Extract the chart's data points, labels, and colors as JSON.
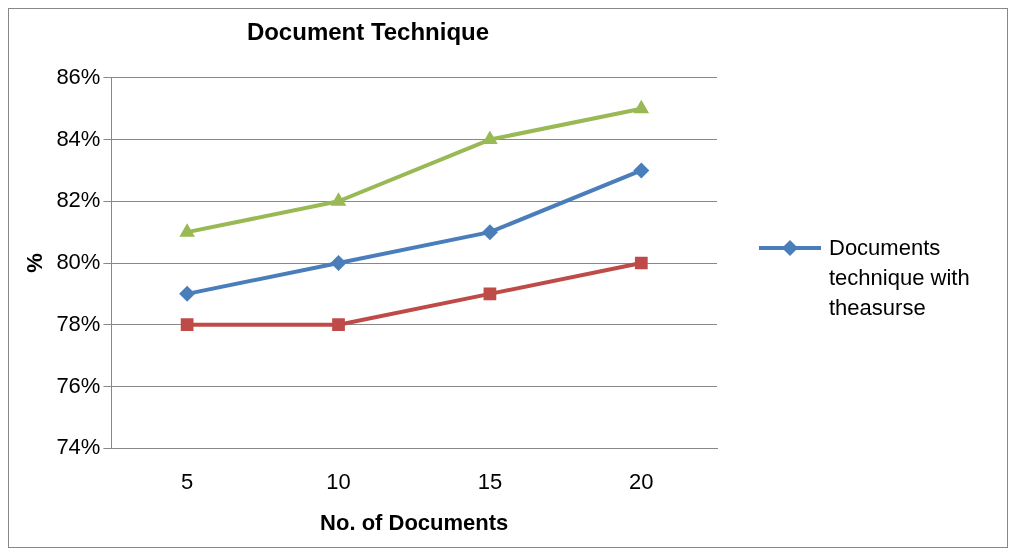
{
  "chart_data": {
    "type": "line",
    "title": "Document Technique",
    "xlabel": "No. of Documents",
    "ylabel": "%",
    "categories": [
      "5",
      "10",
      "15",
      "20"
    ],
    "series": [
      {
        "name": "Documents technique with theasurse",
        "color": "#4a7ebb",
        "values": [
          79,
          80,
          81,
          83
        ],
        "marker": "diamond"
      },
      {
        "color": "#be4b48",
        "values": [
          78,
          78,
          79,
          80
        ],
        "marker": "square"
      },
      {
        "color": "#98b954",
        "values": [
          81,
          82,
          84,
          85
        ],
        "marker": "triangle"
      }
    ],
    "ylim": [
      74,
      86
    ],
    "yticks": [
      {
        "value": 74,
        "label": "74%"
      },
      {
        "value": 76,
        "label": "76%"
      },
      {
        "value": 78,
        "label": "78%"
      },
      {
        "value": 80,
        "label": "80%"
      },
      {
        "value": 82,
        "label": "82%"
      },
      {
        "value": 84,
        "label": "84%"
      },
      {
        "value": 86,
        "label": "86%"
      }
    ],
    "grid": "y",
    "legend": "right"
  }
}
